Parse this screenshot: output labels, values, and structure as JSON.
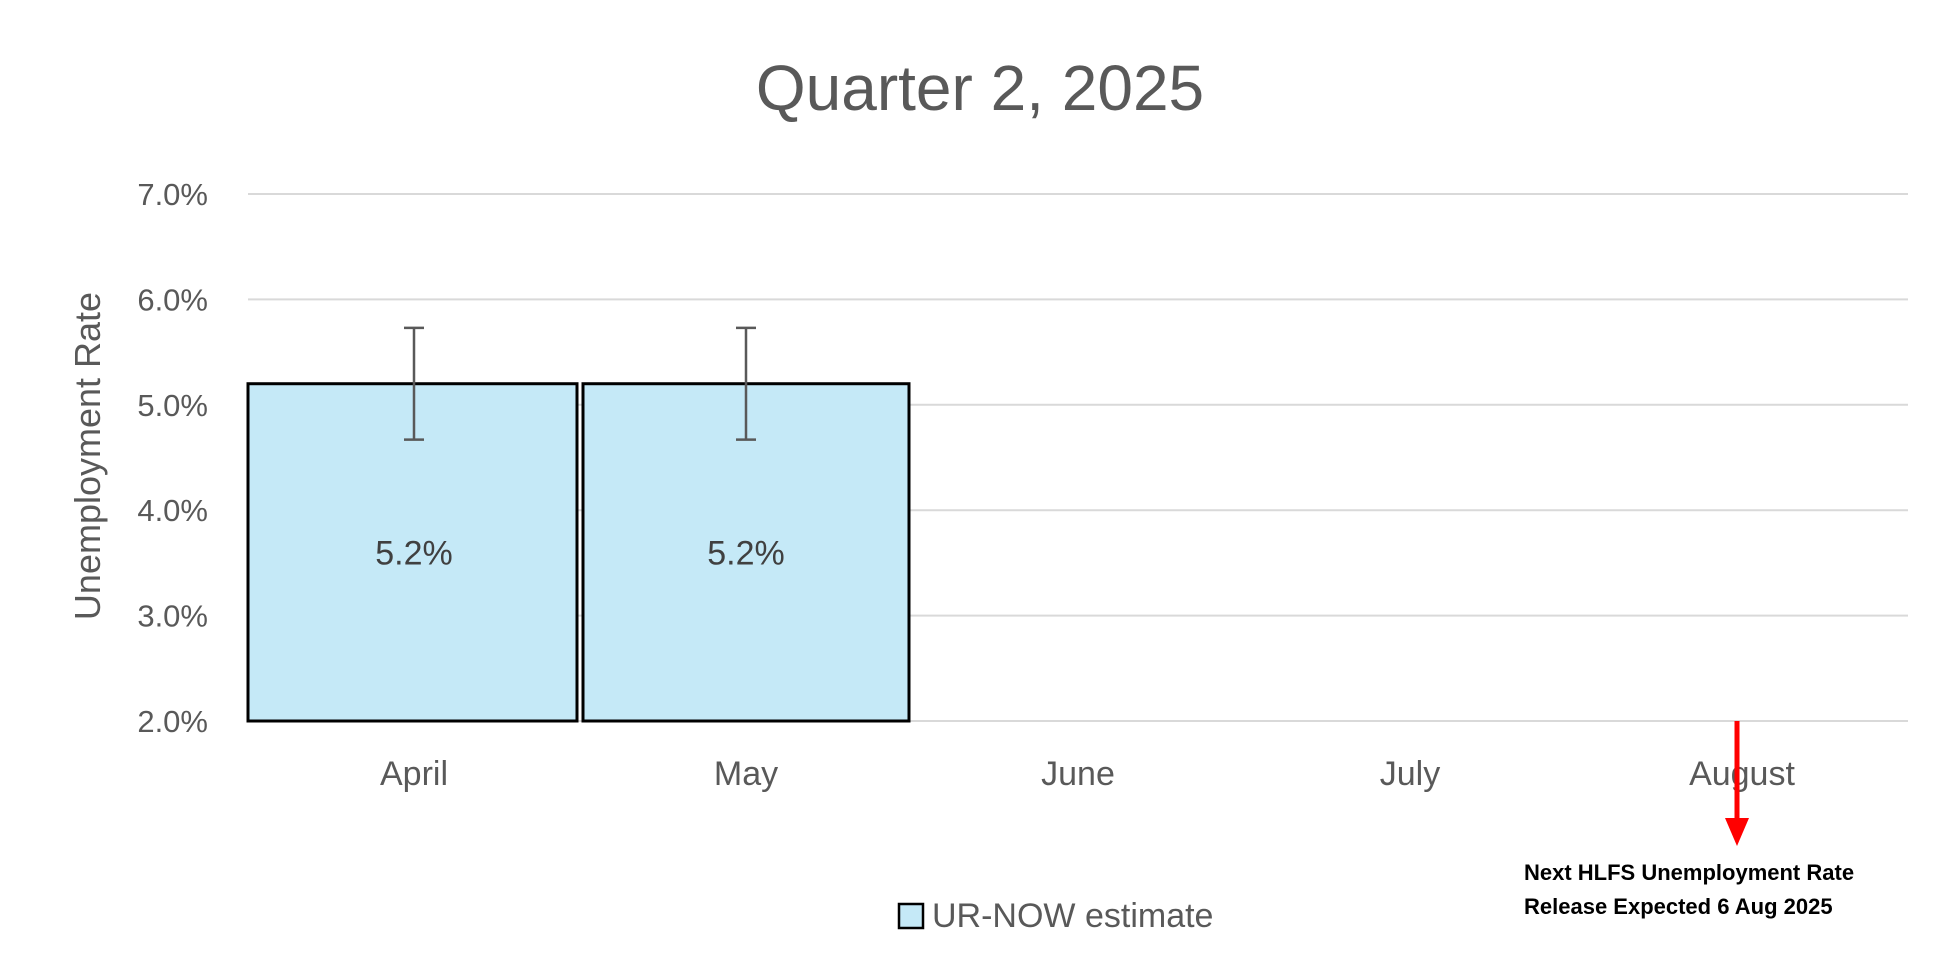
{
  "chart_data": {
    "type": "bar",
    "title": "Quarter 2, 2025",
    "ylabel": "Unemployment Rate",
    "xlabel": "",
    "categories": [
      "April",
      "May",
      "June",
      "July",
      "August"
    ],
    "series": [
      {
        "name": "UR-NOW estimate",
        "values": [
          5.2,
          5.2,
          null,
          null,
          null
        ],
        "error_low": [
          4.67,
          4.67,
          null,
          null,
          null
        ],
        "error_high": [
          5.73,
          5.73,
          null,
          null,
          null
        ],
        "color": "#c5e9f7",
        "border_color": "#000000"
      }
    ],
    "data_labels": [
      "5.2%",
      "5.2%",
      "",
      "",
      ""
    ],
    "ylim": [
      2.0,
      7.0
    ],
    "yticks": [
      2.0,
      3.0,
      4.0,
      5.0,
      6.0,
      7.0
    ],
    "ytick_labels": [
      "2.0%",
      "3.0%",
      "4.0%",
      "5.0%",
      "6.0%",
      "7.0%"
    ],
    "grid": true,
    "legend": {
      "position": "bottom",
      "entries": [
        "UR-NOW estimate"
      ]
    },
    "annotation": {
      "category": "August",
      "lines": [
        "Next HLFS Unemployment Rate",
        "Release Expected 6 Aug 2025"
      ],
      "arrow_color": "#ff0000"
    }
  }
}
